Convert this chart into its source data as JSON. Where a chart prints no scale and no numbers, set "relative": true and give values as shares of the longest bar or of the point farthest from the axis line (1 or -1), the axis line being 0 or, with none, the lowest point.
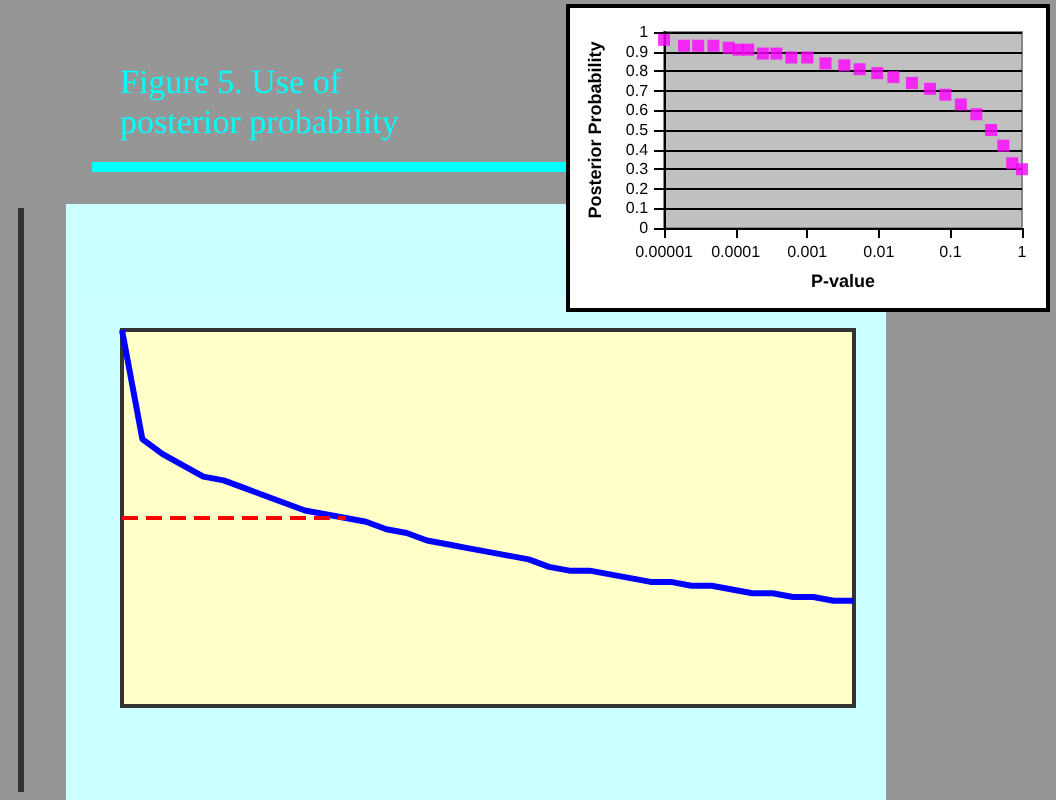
{
  "chart_data": [
    {
      "type": "line",
      "title": "Figure 5. Use of posterior probability",
      "relative": true,
      "grid": false,
      "marker": "none",
      "categories": [
        null,
        null,
        null,
        null,
        null,
        null,
        null,
        null,
        null,
        null,
        null,
        null,
        null,
        null,
        null,
        null,
        null,
        null,
        null,
        null,
        null,
        null,
        null,
        null,
        null,
        null,
        null,
        null,
        null,
        null,
        null,
        null,
        null,
        null,
        null,
        null,
        null
      ],
      "series": [
        {
          "color": "#0000ff",
          "values": [
            1.0,
            0.71,
            0.67,
            0.64,
            0.61,
            0.6,
            0.58,
            0.56,
            0.54,
            0.52,
            0.51,
            0.5,
            0.49,
            0.47,
            0.46,
            0.44,
            0.43,
            0.42,
            0.41,
            0.4,
            0.39,
            0.37,
            0.36,
            0.36,
            0.35,
            0.34,
            0.33,
            0.33,
            0.32,
            0.32,
            0.31,
            0.3,
            0.3,
            0.29,
            0.29,
            0.28,
            0.28
          ]
        }
      ],
      "ref_lines": [
        {
          "axis": "y",
          "value": 0.5,
          "color": "#ff0000",
          "line_style": "dashed"
        }
      ]
    },
    {
      "type": "scatter",
      "xlabel": "P-value",
      "ylabel": "Posterior Probability",
      "log": "x",
      "grid": "y",
      "marker": "square",
      "xlim": [
        1e-05,
        1
      ],
      "xticks": [
        {
          "value": 1e-05,
          "label": "0.00001"
        },
        0.0001,
        0.001,
        0.01,
        0.1,
        1
      ],
      "ylim": [
        0,
        1
      ],
      "yticks": [
        0,
        0.1,
        0.2,
        0.3,
        0.4,
        0.5,
        0.6,
        0.7,
        0.8,
        0.9,
        1
      ],
      "series": [
        {
          "color": "#ff00ff",
          "x": [
            1e-05,
            1.9e-05,
            3e-05,
            4.9e-05,
            8e-05,
            0.00011,
            0.00015,
            0.00024,
            0.00037,
            0.0006,
            0.001,
            0.0018,
            0.0033,
            0.0054,
            0.0095,
            0.016,
            0.029,
            0.052,
            0.085,
            0.14,
            0.23,
            0.37,
            0.55,
            0.73,
            1
          ],
          "values": [
            0.96,
            0.93,
            0.93,
            0.93,
            0.92,
            0.91,
            0.91,
            0.89,
            0.89,
            0.87,
            0.87,
            0.84,
            0.83,
            0.81,
            0.79,
            0.77,
            0.74,
            0.71,
            0.68,
            0.63,
            0.58,
            0.5,
            0.42,
            0.33,
            0.3
          ]
        }
      ]
    }
  ]
}
